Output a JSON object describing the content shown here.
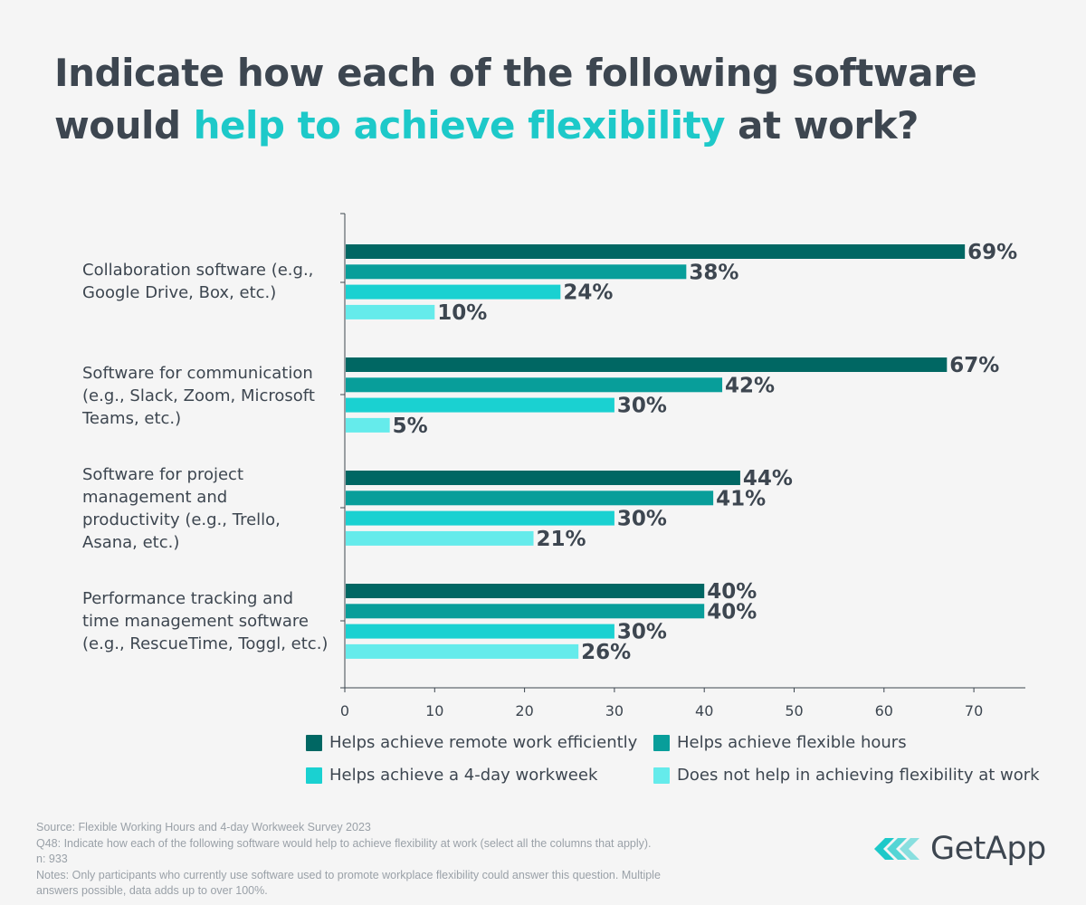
{
  "header": {
    "title_part1": "Indicate how each of the following software",
    "title_part2": "would ",
    "title_highlight": "help to achieve flexibility",
    "title_part3": " at work?"
  },
  "chart_data": {
    "type": "bar",
    "orientation": "horizontal",
    "categories": [
      "Collaboration software (e.g., Google Drive, Box, etc.)",
      "Software for communication (e.g., Slack, Zoom, Microsoft Teams, etc.)",
      "Software for project management and productivity (e.g., Trello, Asana, etc.)",
      "Performance tracking and time management software (e.g., RescueTime, Toggl, etc.)"
    ],
    "series": [
      {
        "name": "Helps achieve remote work efficiently",
        "color": "#006763",
        "values": [
          69,
          67,
          44,
          40
        ]
      },
      {
        "name": "Helps achieve flexible hours",
        "color": "#089e9a",
        "values": [
          38,
          42,
          41,
          40
        ]
      },
      {
        "name": "Helps achieve a 4-day workweek",
        "color": "#1ad1d1",
        "values": [
          24,
          30,
          30,
          30
        ]
      },
      {
        "name": "Does not help in achieving flexibility at work",
        "color": "#65ebeb",
        "values": [
          10,
          5,
          21,
          26
        ]
      }
    ],
    "value_suffix": "%",
    "xlim": [
      0,
      76
    ],
    "xticks": [
      0,
      10,
      20,
      30,
      40,
      50,
      60,
      70
    ],
    "legend_position": "bottom"
  },
  "category_labels": [
    [
      "Collaboration software (e.g.,",
      "Google Drive, Box, etc.)"
    ],
    [
      "Software for communication",
      "(e.g., Slack, Zoom, Microsoft",
      "Teams, etc.)"
    ],
    [
      "Software for project",
      "management and",
      "productivity (e.g., Trello,",
      "Asana, etc.)"
    ],
    [
      "Performance tracking and",
      "time management software",
      "(e.g., RescueTime, Toggl, etc.)"
    ]
  ],
  "footer": {
    "source": "Source: Flexible Working Hours and 4-day Workweek Survey 2023",
    "question": "Q48: Indicate how each of the following software would help to achieve flexibility at work (select all the columns that apply).",
    "sample": "n: 933",
    "notes_line1": "Notes: Only participants who currently use software used to promote workplace flexibility could answer this question. Multiple",
    "notes_line2": "answers possible, data adds up to over 100%."
  },
  "logo": {
    "text": "GetApp",
    "icon": "getapp-chevrons-icon"
  }
}
